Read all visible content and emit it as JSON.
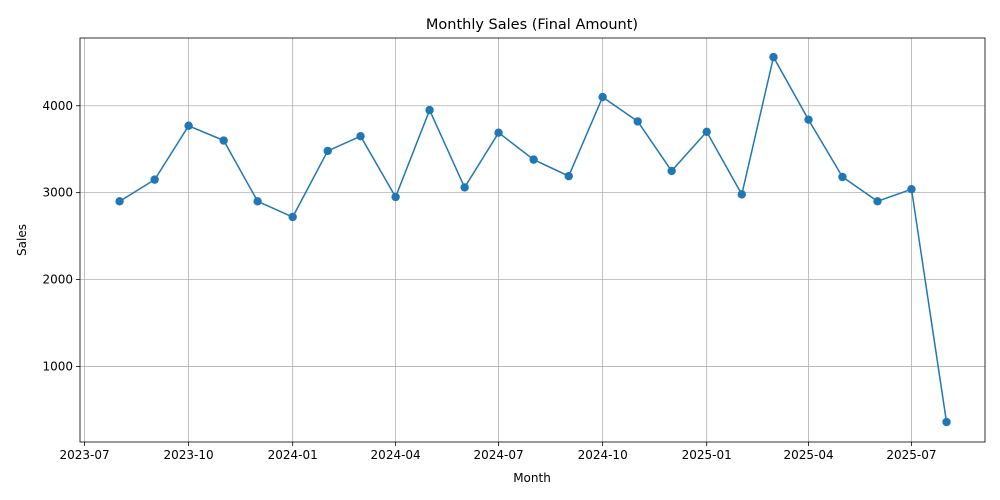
{
  "chart_data": {
    "type": "line",
    "title": "Monthly Sales (Final Amount)",
    "xlabel": "Month",
    "ylabel": "Sales",
    "grid": true,
    "line_color": "#1f77b4",
    "marker": "circle",
    "x_tick_labels": [
      "2023-07",
      "2023-10",
      "2024-01",
      "2024-04",
      "2024-07",
      "2024-10",
      "2025-01",
      "2025-04",
      "2025-07"
    ],
    "y_ticks": [
      1000,
      2000,
      3000,
      4000
    ],
    "x": [
      "2023-08",
      "2023-09",
      "2023-10",
      "2023-11",
      "2023-12",
      "2024-01",
      "2024-02",
      "2024-03",
      "2024-04",
      "2024-05",
      "2024-06",
      "2024-07",
      "2024-08",
      "2024-09",
      "2024-10",
      "2024-11",
      "2024-12",
      "2025-01",
      "2025-02",
      "2025-03",
      "2025-04",
      "2025-05",
      "2025-06",
      "2025-07",
      "2025-08"
    ],
    "values": [
      2900,
      3150,
      3770,
      3600,
      2900,
      2720,
      3480,
      3650,
      2950,
      3950,
      3060,
      3690,
      3380,
      3190,
      4100,
      3820,
      3250,
      3700,
      2980,
      4560,
      3840,
      3180,
      2900,
      3040,
      360
    ],
    "xlim": [
      "2023-06-27",
      "2025-09-04"
    ],
    "ylim": [
      130,
      4780
    ]
  }
}
